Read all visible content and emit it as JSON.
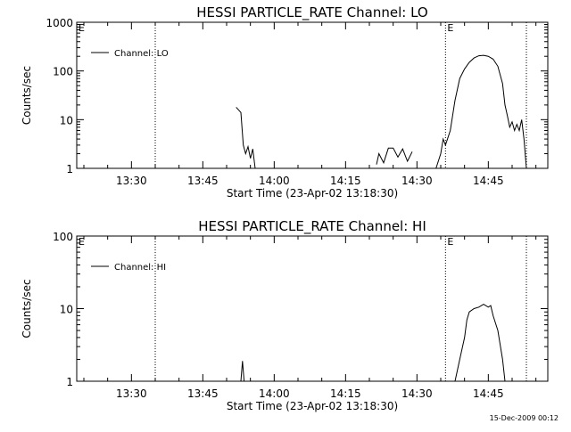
{
  "footer": {
    "timestamp": "15-Dec-2009 00:12"
  },
  "chart_data": [
    {
      "type": "line",
      "title": "HESSI PARTICLE_RATE Channel: LO",
      "xlabel": "Start Time (23-Apr-02 13:18:30)",
      "ylabel": "Counts/sec",
      "yscale": "log",
      "xlim": [
        "13:18:30",
        "14:57:30"
      ],
      "ylim": [
        1,
        1000
      ],
      "xticks": [
        "13:30",
        "13:45",
        "14:00",
        "14:15",
        "14:30",
        "14:45"
      ],
      "yticks": [
        1,
        10,
        100,
        1000
      ],
      "ytick_labels": [
        "1",
        "10",
        "100",
        "1000"
      ],
      "legend": {
        "label": "Channel: LO",
        "placement": "top-left"
      },
      "vlines": [
        "13:35",
        "14:36",
        "14:53"
      ],
      "markers": [
        {
          "label": "E",
          "x": "13:18:30"
        },
        {
          "label": "E",
          "x": "14:36"
        }
      ],
      "series": [
        {
          "x": [
            "13:52:00",
            "13:53:00",
            "13:53:30",
            "13:54:00",
            "13:54:30",
            "13:55:00",
            "13:55:30",
            "13:56:00"
          ],
          "y": [
            18,
            14,
            3,
            2,
            2.8,
            1.6,
            2.5,
            1
          ]
        },
        {
          "x": [
            "14:21:30",
            "14:22:00",
            "14:23:00",
            "14:24:00",
            "14:25:00",
            "14:26:00",
            "14:27:00",
            "14:28:00",
            "14:29:00"
          ],
          "y": [
            1.2,
            2,
            1.3,
            2.6,
            2.6,
            1.7,
            2.5,
            1.4,
            2.2
          ]
        },
        {
          "x": [
            "14:34:00",
            "14:35:00",
            "14:35:30",
            "14:36:00",
            "14:37:00",
            "14:38:00",
            "14:39:00",
            "14:40:00",
            "14:41:00",
            "14:42:00",
            "14:43:00",
            "14:44:00",
            "14:45:00",
            "14:46:00",
            "14:47:00",
            "14:48:00",
            "14:48:30",
            "14:49:00",
            "14:49:30",
            "14:50:00",
            "14:50:30",
            "14:51:00",
            "14:51:30",
            "14:52:00",
            "14:52:30",
            "14:53:00"
          ],
          "y": [
            1,
            2,
            4,
            3,
            6,
            25,
            70,
            110,
            150,
            185,
            205,
            210,
            200,
            175,
            125,
            55,
            20,
            12,
            7,
            9,
            6,
            8,
            6,
            10,
            4,
            1
          ]
        }
      ]
    },
    {
      "type": "line",
      "title": "HESSI PARTICLE_RATE Channel: HI",
      "xlabel": "Start Time (23-Apr-02 13:18:30)",
      "ylabel": "Counts/sec",
      "yscale": "log",
      "xlim": [
        "13:18:30",
        "14:57:30"
      ],
      "ylim": [
        1,
        100
      ],
      "xticks": [
        "13:30",
        "13:45",
        "14:00",
        "14:15",
        "14:30",
        "14:45"
      ],
      "yticks": [
        1,
        10,
        100
      ],
      "ytick_labels": [
        "1",
        "10",
        "100"
      ],
      "legend": {
        "label": "Channel: HI",
        "placement": "top-left"
      },
      "vlines": [
        "13:35",
        "14:36",
        "14:53"
      ],
      "markers": [
        {
          "label": "E",
          "x": "13:18:30"
        },
        {
          "label": "E",
          "x": "14:36"
        }
      ],
      "series": [
        {
          "x": [
            "13:53:00",
            "13:53:20",
            "13:53:40"
          ],
          "y": [
            1,
            1.9,
            1
          ]
        },
        {
          "x": [
            "14:38:00",
            "14:39:00",
            "14:40:00",
            "14:40:30",
            "14:41:00",
            "14:42:00",
            "14:43:00",
            "14:44:00",
            "14:45:00",
            "14:45:30",
            "14:46:00",
            "14:47:00",
            "14:48:00",
            "14:48:30"
          ],
          "y": [
            1,
            2,
            4,
            7,
            9,
            10,
            10.5,
            11.5,
            10.5,
            11,
            8,
            5,
            2,
            1
          ]
        }
      ]
    }
  ]
}
